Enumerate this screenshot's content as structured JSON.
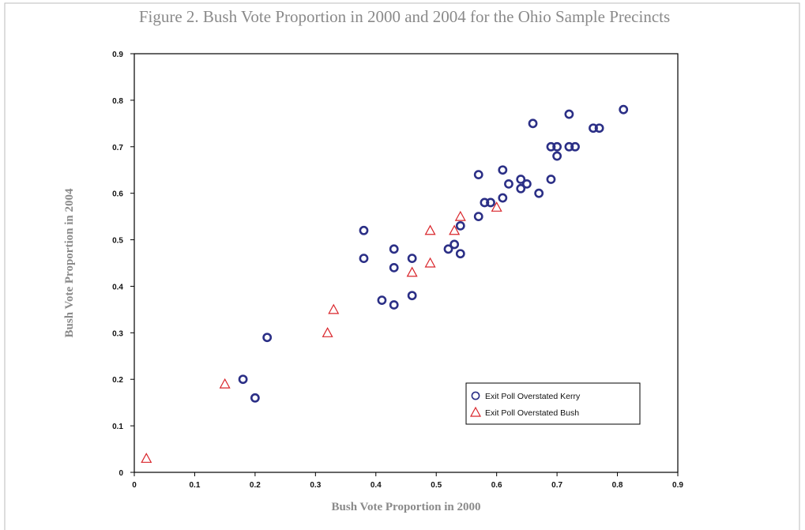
{
  "chart_data": {
    "type": "scatter",
    "title": "Figure 2. Bush Vote Proportion in 2000 and 2004 for the Ohio Sample Precincts",
    "xlabel": "Bush Vote Proportion in 2000",
    "ylabel": "Bush Vote Proportion in 2004",
    "xlim": [
      0,
      0.9
    ],
    "ylim": [
      0,
      0.9
    ],
    "xticks": [
      0,
      0.1,
      0.2,
      0.3,
      0.4,
      0.5,
      0.6,
      0.7,
      0.8,
      0.9
    ],
    "yticks": [
      0,
      0.1,
      0.2,
      0.3,
      0.4,
      0.5,
      0.6,
      0.7,
      0.8,
      0.9
    ],
    "legend": "lower right",
    "series": [
      {
        "name": "Exit Poll Overstated Kerry",
        "color": "#2b2f86",
        "marker": "circle",
        "x": [
          0.18,
          0.2,
          0.22,
          0.38,
          0.38,
          0.41,
          0.43,
          0.43,
          0.43,
          0.46,
          0.46,
          0.52,
          0.53,
          0.54,
          0.54,
          0.57,
          0.57,
          0.58,
          0.59,
          0.61,
          0.61,
          0.62,
          0.64,
          0.64,
          0.65,
          0.66,
          0.67,
          0.69,
          0.69,
          0.7,
          0.7,
          0.72,
          0.72,
          0.73,
          0.76,
          0.77,
          0.81
        ],
        "y": [
          0.2,
          0.16,
          0.29,
          0.52,
          0.46,
          0.37,
          0.36,
          0.44,
          0.48,
          0.46,
          0.38,
          0.48,
          0.49,
          0.47,
          0.53,
          0.55,
          0.64,
          0.58,
          0.58,
          0.59,
          0.65,
          0.62,
          0.63,
          0.61,
          0.62,
          0.75,
          0.6,
          0.63,
          0.7,
          0.7,
          0.68,
          0.77,
          0.7,
          0.7,
          0.74,
          0.74,
          0.78
        ]
      },
      {
        "name": "Exit Poll Overstated Bush",
        "color": "#d9242a",
        "marker": "triangle",
        "x": [
          0.02,
          0.15,
          0.32,
          0.33,
          0.46,
          0.49,
          0.49,
          0.53,
          0.54,
          0.6
        ],
        "y": [
          0.03,
          0.19,
          0.3,
          0.35,
          0.43,
          0.45,
          0.52,
          0.52,
          0.55,
          0.57
        ]
      }
    ]
  }
}
